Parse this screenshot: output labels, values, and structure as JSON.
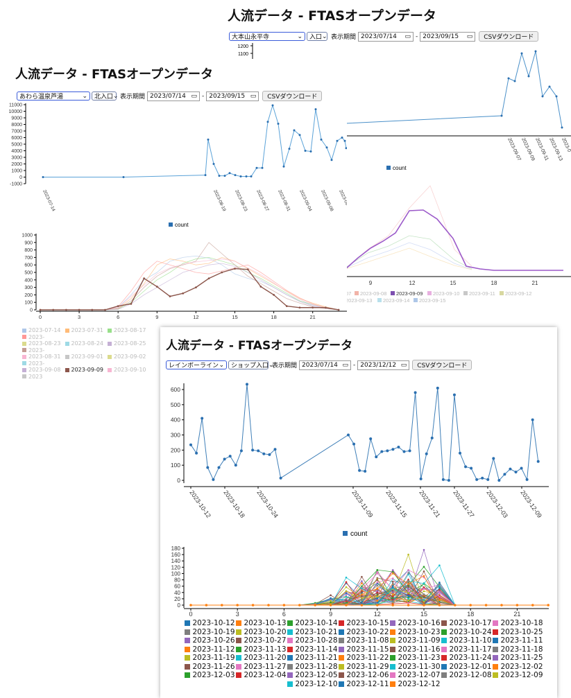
{
  "page_title": "人流データ - FTASオープンデータ",
  "common": {
    "period_label": "表示期間",
    "start_date": "2023/07/14",
    "dash": "-",
    "csv_label": "CSVダウンロード",
    "count_legend": "count"
  },
  "panel1": {
    "title": "人流データ - FTASオープンデータ",
    "location": "大本山永平寺",
    "entrance": "入口",
    "end_date": "2023/09/15",
    "y_ticks": [
      "1200",
      "1100",
      "1000"
    ],
    "x_ticks": [
      "2023-09-07",
      "2023-09-09",
      "2023-09-11",
      "2023-09-13",
      "2023-0"
    ],
    "legend": "count",
    "hourly_x_ticks": [
      "9",
      "12",
      "15",
      "18",
      "21"
    ],
    "hourly_legend_rows": [
      [
        "07",
        "2023-09-08",
        "2023-09-09",
        "2023-09-10",
        "2023-09-11",
        "2023-09-12"
      ],
      [
        "2023-09-13",
        "2023-09-14",
        "2023-09-15"
      ]
    ]
  },
  "panel2": {
    "title": "人流データ - FTASオープンデータ",
    "location": "あわら温泉芦湯",
    "entrance": "北入口",
    "end_date": "2023/09/15",
    "y_ticks": [
      "11000",
      "10000",
      "9000",
      "8000",
      "7000",
      "6000",
      "5000",
      "4000",
      "3000",
      "2000",
      "1000",
      "0",
      "-1000"
    ],
    "x_ticks": [
      "2023-07-14",
      "2023-08-19",
      "2023-08-23",
      "2023-08-27",
      "2023-08-31",
      "2023-09-04",
      "2023-09-08",
      "2023-09-12"
    ],
    "legend": "count",
    "hourly_y_ticks": [
      "1000",
      "900",
      "800",
      "700",
      "600",
      "500",
      "400",
      "300",
      "200",
      "100",
      "0"
    ],
    "hourly_x_ticks": [
      "0",
      "3",
      "6",
      "9",
      "12",
      "15",
      "18",
      "21"
    ],
    "hourly_legend_rows": [
      [
        "2023-07-14",
        "2023-07-31",
        "2023-08-17",
        "2023-"
      ],
      [
        "2023-08-23",
        "2023-08-24",
        "2023-08-25",
        "2023-"
      ],
      [
        "2023-08-31",
        "2023-09-01",
        "2023-09-02",
        "2023-"
      ],
      [
        "2023-09-08",
        "2023-09-09",
        "2023-09-10",
        "2023"
      ]
    ]
  },
  "panel3": {
    "title": "人流データ - FTASオープンデータ",
    "location": "レインボーライン",
    "entrance": "ショップ入口",
    "end_date": "2023/12/12",
    "y_ticks": [
      "600",
      "500",
      "400",
      "300",
      "200",
      "100",
      "0"
    ],
    "x_ticks": [
      "2023-10-12",
      "2023-10-18",
      "2023-10-24",
      "2023-11-09",
      "2023-11-15",
      "2023-11-21",
      "2023-11-27",
      "2023-12-03",
      "2023-12-09"
    ],
    "legend": "count",
    "hourly_y_ticks": [
      "180",
      "160",
      "140",
      "120",
      "100",
      "80",
      "60",
      "40",
      "20",
      "0"
    ],
    "hourly_x_ticks": [
      "0",
      "3",
      "6",
      "9",
      "12",
      "15",
      "18",
      "21"
    ],
    "legend_rows": [
      [
        "2023-10-12",
        "2023-10-13",
        "2023-10-14",
        "2023-10-15",
        "2023-10-16",
        "2023-10-17",
        "2023-10-18"
      ],
      [
        "2023-10-19",
        "2023-10-20",
        "2023-10-21",
        "2023-10-22",
        "2023-10-23",
        "2023-10-24",
        "2023-10-25"
      ],
      [
        "2023-10-26",
        "2023-10-27",
        "2023-10-28",
        "2023-11-08",
        "2023-11-09",
        "2023-11-10",
        "2023-11-11"
      ],
      [
        "2023-11-12",
        "2023-11-13",
        "2023-11-14",
        "2023-11-15",
        "2023-11-16",
        "2023-11-17",
        "2023-11-18"
      ],
      [
        "2023-11-19",
        "2023-11-20",
        "2023-11-21",
        "2023-11-22",
        "2023-11-23",
        "2023-11-24",
        "2023-11-25"
      ],
      [
        "2023-11-26",
        "2023-11-27",
        "2023-11-28",
        "2023-11-29",
        "2023-11-30",
        "2023-12-01",
        "2023-12-02"
      ],
      [
        "2023-12-03",
        "2023-12-04",
        "2023-12-05",
        "2023-12-06",
        "2023-12-07",
        "2023-12-08",
        "2023-12-09"
      ],
      [
        "2023-12-10",
        "2023-12-11",
        "2023-12-12"
      ]
    ],
    "legend_colors": [
      "#1f77b4",
      "#ff7f0e",
      "#2ca02c",
      "#d62728",
      "#9467bd",
      "#8c564b",
      "#e377c2",
      "#7f7f7f",
      "#bcbd22",
      "#17becf"
    ]
  },
  "chart_data": [
    {
      "type": "line",
      "title": "",
      "series": [
        {
          "name": "count",
          "x": [
            "2023-07-14",
            "2023-08-19",
            "2023-10-12",
            "2023-10-13",
            "2023-10-14",
            "2023-10-15",
            "2023-10-16",
            "2023-10-17",
            "2023-10-18",
            "2023-10-19",
            "2023-10-20",
            "2023-10-21",
            "2023-10-22",
            "2023-10-23",
            "2023-10-24",
            "2023-10-25",
            "2023-10-26",
            "2023-10-27",
            "2023-10-28",
            "2023-11-08",
            "2023-11-09",
            "2023-11-10",
            "2023-11-11",
            "2023-11-12",
            "2023-11-13",
            "2023-11-14",
            "2023-11-15",
            "2023-11-16",
            "2023-11-17",
            "2023-11-18",
            "2023-11-19",
            "2023-11-20",
            "2023-11-21",
            "2023-11-22",
            "2023-11-23",
            "2023-11-24",
            "2023-11-25",
            "2023-11-26",
            "2023-11-27",
            "2023-11-28",
            "2023-11-29",
            "2023-11-30",
            "2023-12-01",
            "2023-12-02",
            "2023-12-03",
            "2023-12-04",
            "2023-12-05",
            "2023-12-06",
            "2023-12-07",
            "2023-12-08",
            "2023-12-09",
            "2023-12-10",
            "2023-12-11",
            "2023-12-12"
          ],
          "values": [
            0,
            0,
            235,
            180,
            410,
            85,
            5,
            85,
            140,
            160,
            100,
            195,
            635,
            200,
            195,
            175,
            170,
            205,
            15,
            300,
            240,
            65,
            60,
            275,
            155,
            190,
            195,
            205,
            220,
            190,
            195,
            580,
            10,
            175,
            280,
            610,
            5,
            0,
            565,
            180,
            90,
            80,
            5,
            15,
            5,
            145,
            0,
            40,
            75,
            55,
            80,
            5,
            400,
            125
          ]
        }
      ],
      "ylim": [
        0,
        700
      ]
    },
    {
      "type": "line",
      "title": "",
      "series": [
        {
          "name": "count",
          "x": [
            "2023-07-14",
            "2023-08-17",
            "2023-08-18",
            "2023-08-19",
            "2023-08-20",
            "2023-08-21",
            "2023-08-22",
            "2023-08-23",
            "2023-08-24",
            "2023-08-25",
            "2023-08-26",
            "2023-08-27",
            "2023-08-28",
            "2023-08-29",
            "2023-08-30",
            "2023-08-31",
            "2023-09-01",
            "2023-09-02",
            "2023-09-03",
            "2023-09-04",
            "2023-09-05",
            "2023-09-06",
            "2023-09-07",
            "2023-09-08",
            "2023-09-09",
            "2023-09-10",
            "2023-09-11",
            "2023-09-12",
            "2023-09-13",
            "2023-09-14",
            "2023-09-15"
          ],
          "values": [
            0,
            0,
            300,
            5700,
            2000,
            200,
            200,
            600,
            300,
            100,
            100,
            100,
            1400,
            1400,
            8400,
            10900,
            8100,
            1600,
            4300,
            7100,
            6400,
            4000,
            3900,
            10300,
            5700,
            4500,
            2600,
            5500,
            6000,
            5500,
            4400
          ]
        }
      ],
      "ylim": [
        -1000,
        11000
      ]
    },
    {
      "type": "line",
      "title": "",
      "x": [
        0,
        1,
        2,
        3,
        4,
        5,
        6,
        7,
        8,
        9,
        10,
        11,
        12,
        13,
        14,
        15,
        16,
        17,
        18,
        19,
        20,
        21,
        22,
        23
      ],
      "series": [
        {
          "name": "2023-09-09",
          "values": [
            0,
            0,
            0,
            0,
            0,
            0,
            50,
            80,
            420,
            310,
            180,
            220,
            300,
            420,
            500,
            550,
            540,
            310,
            200,
            50,
            30,
            30,
            30,
            0
          ]
        }
      ],
      "ylim": [
        0,
        1000
      ]
    }
  ]
}
